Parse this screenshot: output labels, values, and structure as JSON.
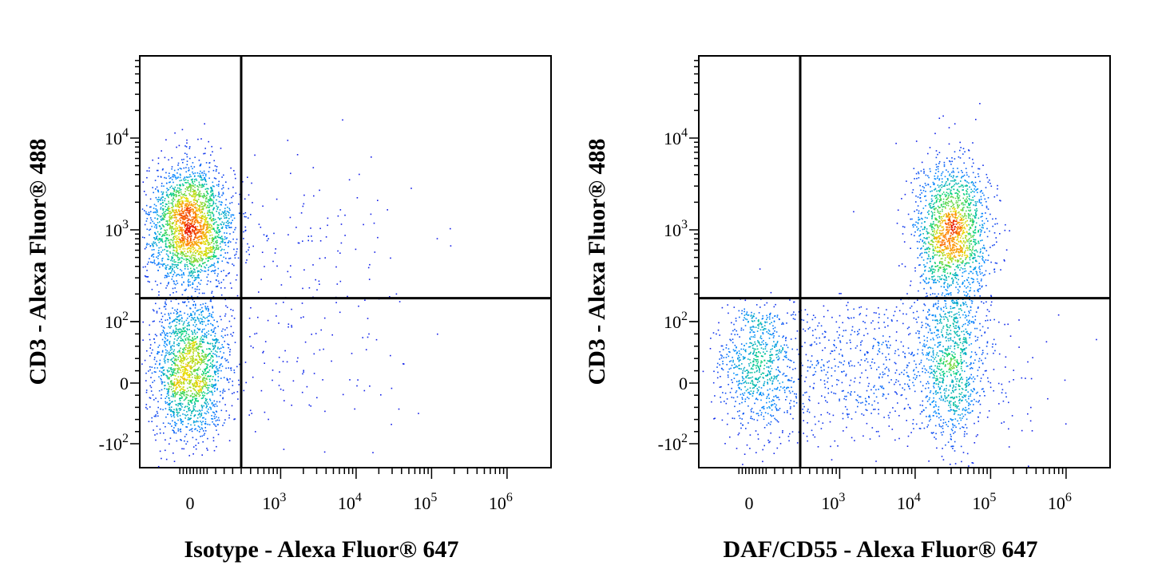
{
  "chart_data": [
    {
      "type": "scatter",
      "title": "",
      "xlabel": "Isotype - Alexa Fluor® 647",
      "ylabel": "CD3 - Alexa Fluor® 488",
      "xscale": "biexponential",
      "yscale": "biexponential",
      "x_ticks": [
        {
          "value": 0,
          "label": "0"
        },
        {
          "value": 1000,
          "base": "10",
          "exp": "3"
        },
        {
          "value": 10000,
          "base": "10",
          "exp": "4"
        },
        {
          "value": 100000,
          "base": "10",
          "exp": "5"
        },
        {
          "value": 1000000,
          "base": "10",
          "exp": "6"
        }
      ],
      "y_ticks": [
        {
          "value": -100,
          "base": "-10",
          "exp": "2"
        },
        {
          "value": 0,
          "label": "0"
        },
        {
          "value": 100,
          "base": "10",
          "exp": "2"
        },
        {
          "value": 1000,
          "base": "10",
          "exp": "3"
        },
        {
          "value": 10000,
          "base": "10",
          "exp": "4"
        }
      ],
      "gate": {
        "x": 300,
        "y": 180
      },
      "grid": false,
      "colormap": "density (blue → green → yellow → red)",
      "populations": [
        {
          "center": [
            -5,
            1100
          ],
          "spread": [
            130,
            0.75
          ],
          "count": 2300
        },
        {
          "center": [
            -5,
            25
          ],
          "spread": [
            110,
            55
          ],
          "count": 1700
        },
        {
          "center": [
            1500,
            700
          ],
          "spread": [
            1.8,
            1.0
          ],
          "count": 140
        },
        {
          "center": [
            1200,
            30
          ],
          "spread": [
            2.0,
            60
          ],
          "count": 120
        }
      ],
      "outliers": [
        [
          6500,
          16000
        ],
        [
          28000,
          500
        ],
        [
          12000,
          75
        ],
        [
          17000,
          1200
        ]
      ]
    },
    {
      "type": "scatter",
      "title": "",
      "xlabel": "DAF/CD55 - Alexa Fluor® 647",
      "ylabel": "CD3 - Alexa Fluor® 488",
      "xscale": "biexponential",
      "yscale": "biexponential",
      "x_ticks": [
        {
          "value": 0,
          "label": "0"
        },
        {
          "value": 1000,
          "base": "10",
          "exp": "3"
        },
        {
          "value": 10000,
          "base": "10",
          "exp": "4"
        },
        {
          "value": 100000,
          "base": "10",
          "exp": "5"
        },
        {
          "value": 1000000,
          "base": "10",
          "exp": "6"
        }
      ],
      "y_ticks": [
        {
          "value": -100,
          "base": "-10",
          "exp": "2"
        },
        {
          "value": 0,
          "label": "0"
        },
        {
          "value": 100,
          "base": "10",
          "exp": "2"
        },
        {
          "value": 1000,
          "base": "10",
          "exp": "3"
        },
        {
          "value": 10000,
          "base": "10",
          "exp": "4"
        }
      ],
      "gate": {
        "x": 300,
        "y": 180
      },
      "grid": false,
      "colormap": "density (blue → green → yellow → red)",
      "populations": [
        {
          "center": [
            30000,
            900
          ],
          "spread": [
            0.55,
            0.9
          ],
          "count": 1700
        },
        {
          "center": [
            30000,
            20
          ],
          "spread": [
            0.5,
            60
          ],
          "count": 750
        },
        {
          "center": [
            2000,
            30
          ],
          "spread": [
            2.2,
            60
          ],
          "count": 900
        },
        {
          "center": [
            20,
            25
          ],
          "spread": [
            120,
            55
          ],
          "count": 650
        }
      ],
      "outliers": [
        [
          60,
          380
        ],
        [
          8000,
          1500
        ],
        [
          1500,
          1600
        ]
      ]
    }
  ]
}
